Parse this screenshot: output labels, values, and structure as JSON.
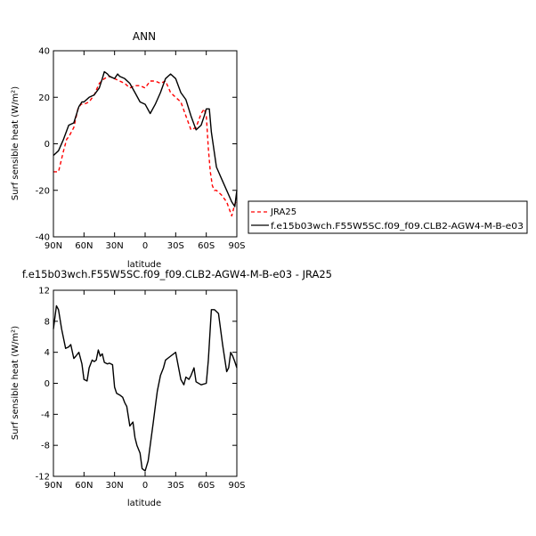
{
  "chart_data": [
    {
      "type": "line",
      "title": "ANN",
      "xlabel": "latitude",
      "ylabel": "Surf sensible heat (W/m²)",
      "x_ticks": [
        {
          "value": -90,
          "label": "90N"
        },
        {
          "value": -60,
          "label": "60N"
        },
        {
          "value": -30,
          "label": "30N"
        },
        {
          "value": 0,
          "label": "0"
        },
        {
          "value": 30,
          "label": "30S"
        },
        {
          "value": 60,
          "label": "60S"
        },
        {
          "value": 90,
          "label": "90S"
        }
      ],
      "y_ticks": [
        {
          "value": -40,
          "label": "-40"
        },
        {
          "value": -20,
          "label": "-20"
        },
        {
          "value": 0,
          "label": "0"
        },
        {
          "value": 20,
          "label": "20"
        },
        {
          "value": 40,
          "label": "40"
        }
      ],
      "xlim": [
        -90,
        90
      ],
      "ylim": [
        -40,
        40
      ],
      "grid": false,
      "legend_position": "right",
      "series": [
        {
          "name": "JRA25",
          "color": "#ff0000",
          "style": "dashed",
          "x": [
            -90,
            -85,
            -80,
            -77,
            -75,
            -70,
            -66,
            -63,
            -60,
            -55,
            -50,
            -45,
            -40,
            -35,
            -30,
            -25,
            -20,
            -15,
            -10,
            -5,
            0,
            5,
            10,
            15,
            20,
            25,
            30,
            35,
            40,
            45,
            50,
            55,
            58,
            60,
            62,
            64,
            66,
            68,
            70,
            75,
            80,
            85,
            88,
            90
          ],
          "y": [
            -12,
            -12,
            -3,
            2,
            3,
            7,
            15,
            17,
            17,
            18,
            21,
            26,
            28,
            29,
            28,
            27,
            26,
            24,
            25,
            25,
            24,
            27,
            27,
            26,
            27,
            22,
            20,
            18,
            12,
            6,
            7,
            13,
            15,
            12,
            -2,
            -12,
            -18,
            -20,
            -20,
            -22,
            -25,
            -31,
            -26,
            -24
          ]
        },
        {
          "name": "f.e15b03wch.F55W5SC.f09_f09.CLB2-AGW4-M-B-e03",
          "color": "#000000",
          "style": "solid",
          "x": [
            -90,
            -85,
            -80,
            -75,
            -70,
            -65,
            -62,
            -60,
            -55,
            -50,
            -45,
            -42,
            -40,
            -37,
            -35,
            -30,
            -27,
            -25,
            -20,
            -15,
            -10,
            -5,
            0,
            5,
            10,
            15,
            20,
            25,
            30,
            35,
            40,
            45,
            50,
            55,
            58,
            60,
            63,
            65,
            70,
            75,
            80,
            85,
            88,
            90
          ],
          "y": [
            -5,
            -3,
            2,
            8,
            9,
            16,
            18,
            18,
            20,
            21,
            24,
            28,
            31,
            30,
            29,
            28,
            30,
            29,
            28,
            26,
            22,
            18,
            17,
            13,
            17,
            22,
            28,
            30,
            28,
            22,
            19,
            12,
            6,
            8,
            12,
            15,
            15,
            5,
            -10,
            -15,
            -20,
            -25,
            -27,
            -20
          ]
        }
      ]
    },
    {
      "type": "line",
      "title": "f.e15b03wch.F55W5SC.f09_f09.CLB2-AGW4-M-B-e03 - JRA25",
      "xlabel": "latitude",
      "ylabel": "Surf sensible heat (W/m²)",
      "x_ticks": [
        {
          "value": -90,
          "label": "90N"
        },
        {
          "value": -60,
          "label": "60N"
        },
        {
          "value": -30,
          "label": "30N"
        },
        {
          "value": 0,
          "label": "0"
        },
        {
          "value": 30,
          "label": "30S"
        },
        {
          "value": 60,
          "label": "60S"
        },
        {
          "value": 90,
          "label": "90S"
        }
      ],
      "y_ticks": [
        {
          "value": -12,
          "label": "-12"
        },
        {
          "value": -8,
          "label": "-8"
        },
        {
          "value": -4,
          "label": "-4"
        },
        {
          "value": 0,
          "label": "0"
        },
        {
          "value": 4,
          "label": "4"
        },
        {
          "value": 8,
          "label": "8"
        },
        {
          "value": 12,
          "label": "12"
        }
      ],
      "xlim": [
        -90,
        90
      ],
      "ylim": [
        -12,
        12
      ],
      "grid": false,
      "series": [
        {
          "color": "#000000",
          "style": "solid",
          "x": [
            -90,
            -87,
            -85,
            -82,
            -78,
            -75,
            -73,
            -70,
            -68,
            -65,
            -62,
            -60,
            -57,
            -55,
            -52,
            -50,
            -48,
            -46,
            -44,
            -42,
            -40,
            -37,
            -35,
            -32,
            -30,
            -28,
            -25,
            -22,
            -20,
            -18,
            -15,
            -12,
            -10,
            -8,
            -5,
            -3,
            0,
            3,
            5,
            8,
            10,
            12,
            15,
            18,
            20,
            25,
            30,
            35,
            38,
            40,
            43,
            45,
            48,
            50,
            55,
            60,
            62,
            65,
            68,
            72,
            76,
            80,
            82,
            84,
            86,
            88,
            90
          ],
          "y": [
            7,
            10,
            9.5,
            7,
            4.5,
            4.7,
            5,
            3.2,
            3.5,
            4,
            2.5,
            0.5,
            0.3,
            2,
            3,
            2.8,
            3,
            4.3,
            3.5,
            3.8,
            2.7,
            2.5,
            2.6,
            2.4,
            -0.5,
            -1.3,
            -1.5,
            -1.8,
            -2.5,
            -3,
            -5.5,
            -5,
            -7,
            -8,
            -9,
            -11,
            -11.3,
            -10,
            -8,
            -5,
            -3,
            -1,
            1,
            2,
            3,
            3.5,
            4,
            0.5,
            -0.2,
            0.8,
            0.5,
            1,
            2,
            0.2,
            -0.2,
            0,
            3,
            9.5,
            9.5,
            9,
            5,
            1.5,
            2,
            4,
            3.5,
            2.8,
            2
          ]
        }
      ]
    }
  ]
}
